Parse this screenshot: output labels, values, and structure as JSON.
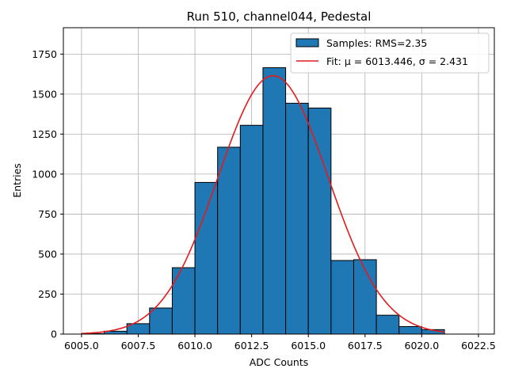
{
  "chart_data": {
    "type": "bar",
    "title": "Run 510, channel044, Pedestal",
    "xlabel": "ADC Counts",
    "ylabel": "Entries",
    "xlim": [
      6004.2,
      6023.2
    ],
    "ylim": [
      0,
      1915
    ],
    "grid": true,
    "legend_position": "top-right",
    "x_ticks": [
      6005.0,
      6007.5,
      6010.0,
      6012.5,
      6015.0,
      6017.5,
      6020.0,
      6022.5
    ],
    "x_tick_labels": [
      "6005.0",
      "6007.5",
      "6010.0",
      "6012.5",
      "6015.0",
      "6017.5",
      "6020.0",
      "6022.5"
    ],
    "y_ticks": [
      0,
      250,
      500,
      750,
      1000,
      1250,
      1500,
      1750
    ],
    "y_tick_labels": [
      "0",
      "250",
      "500",
      "750",
      "1000",
      "1250",
      "1500",
      "1750"
    ],
    "bins": [
      {
        "left": 6005,
        "right": 6006,
        "value": 3
      },
      {
        "left": 6006,
        "right": 6007,
        "value": 18
      },
      {
        "left": 6007,
        "right": 6008,
        "value": 65
      },
      {
        "left": 6008,
        "right": 6009,
        "value": 163
      },
      {
        "left": 6009,
        "right": 6010,
        "value": 415
      },
      {
        "left": 6010,
        "right": 6011,
        "value": 948
      },
      {
        "left": 6011,
        "right": 6012,
        "value": 1168
      },
      {
        "left": 6012,
        "right": 6013,
        "value": 1305
      },
      {
        "left": 6013,
        "right": 6014,
        "value": 1665
      },
      {
        "left": 6014,
        "right": 6015,
        "value": 1443
      },
      {
        "left": 6015,
        "right": 6016,
        "value": 1413
      },
      {
        "left": 6016,
        "right": 6017,
        "value": 460
      },
      {
        "left": 6017,
        "right": 6018,
        "value": 465
      },
      {
        "left": 6018,
        "right": 6019,
        "value": 118
      },
      {
        "left": 6019,
        "right": 6020,
        "value": 47
      },
      {
        "left": 6020,
        "right": 6021,
        "value": 28
      }
    ],
    "fit": {
      "mu": 6013.446,
      "sigma": 2.431,
      "amplitude": 1615,
      "x_range": [
        6005.0,
        6021.0
      ]
    },
    "legend": [
      {
        "label": "Samples: RMS=2.35",
        "kind": "patch"
      },
      {
        "label": "Fit: μ = 6013.446, σ = 2.431",
        "kind": "line"
      }
    ],
    "colors": {
      "bar_fill": "#1f77b4",
      "bar_edge": "#000000",
      "fit_line": "#e41a1c",
      "grid": "#b0b0b0"
    }
  }
}
